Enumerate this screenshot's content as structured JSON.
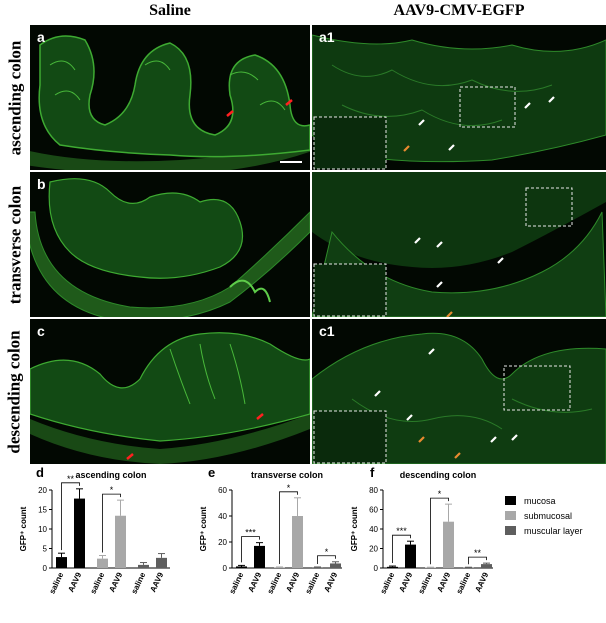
{
  "headers": {
    "left": "Saline",
    "right": "AAV9-CMV-EGFP"
  },
  "rows": [
    {
      "label": "ascending colon",
      "left_letter": "a",
      "right_letter": "a1"
    },
    {
      "label": "transverse colon",
      "left_letter": "b",
      "right_letter": ""
    },
    {
      "label": "descending colon",
      "left_letter": "c",
      "right_letter": "c1"
    }
  ],
  "legend": [
    {
      "label": "mucosa",
      "color": "#000000"
    },
    {
      "label": "submucosal",
      "color": "#a8a8a8"
    },
    {
      "label": "muscular layer",
      "color": "#5e5e5e"
    }
  ],
  "chart_data": [
    {
      "type": "bar",
      "letter": "d",
      "title": "ascending colon",
      "ylabel": "GFP⁺ count",
      "categories": [
        "saline",
        "AAV9",
        "saline",
        "AAV9",
        "saline",
        "AAV9"
      ],
      "values": [
        2.8,
        17.8,
        2.4,
        13.4,
        0.8,
        2.6
      ],
      "errors": [
        1.0,
        2.5,
        0.8,
        4.0,
        0.6,
        1.1
      ],
      "colors": [
        "#000000",
        "#000000",
        "#a8a8a8",
        "#a8a8a8",
        "#5e5e5e",
        "#5e5e5e"
      ],
      "ylim": [
        0,
        20
      ],
      "yticks": [
        0,
        5,
        10,
        15,
        20
      ],
      "significance": [
        {
          "pair": [
            0,
            1
          ],
          "label": "**"
        },
        {
          "pair": [
            2,
            3
          ],
          "label": "*"
        }
      ]
    },
    {
      "type": "bar",
      "letter": "e",
      "title": "transverse colon",
      "ylabel": "GFP⁺ count",
      "categories": [
        "saline",
        "AAV9",
        "saline",
        "AAV9",
        "saline",
        "AAV9"
      ],
      "values": [
        1.2,
        17.0,
        0.5,
        40.0,
        0.5,
        3.5
      ],
      "errors": [
        0.8,
        2.5,
        0.3,
        14.0,
        0.3,
        1.3
      ],
      "colors": [
        "#000000",
        "#000000",
        "#a8a8a8",
        "#a8a8a8",
        "#5e5e5e",
        "#5e5e5e"
      ],
      "ylim": [
        0,
        60
      ],
      "yticks": [
        0,
        20,
        40,
        60
      ],
      "significance": [
        {
          "pair": [
            0,
            1
          ],
          "label": "***"
        },
        {
          "pair": [
            2,
            3
          ],
          "label": "*"
        },
        {
          "pair": [
            4,
            5
          ],
          "label": "*"
        }
      ]
    },
    {
      "type": "bar",
      "letter": "f",
      "title": "descending colon",
      "ylabel": "GFP⁺ count",
      "categories": [
        "saline",
        "AAV9",
        "saline",
        "AAV9",
        "saline",
        "AAV9"
      ],
      "values": [
        1.2,
        24.0,
        0.5,
        47.5,
        0.5,
        4.0
      ],
      "errors": [
        0.8,
        3.5,
        0.3,
        18.0,
        0.3,
        1.0
      ],
      "colors": [
        "#000000",
        "#000000",
        "#a8a8a8",
        "#a8a8a8",
        "#5e5e5e",
        "#5e5e5e"
      ],
      "ylim": [
        0,
        80
      ],
      "yticks": [
        0,
        20,
        40,
        60,
        80
      ],
      "significance": [
        {
          "pair": [
            0,
            1
          ],
          "label": "***"
        },
        {
          "pair": [
            2,
            3
          ],
          "label": "*"
        },
        {
          "pair": [
            4,
            5
          ],
          "label": "**"
        }
      ]
    }
  ]
}
